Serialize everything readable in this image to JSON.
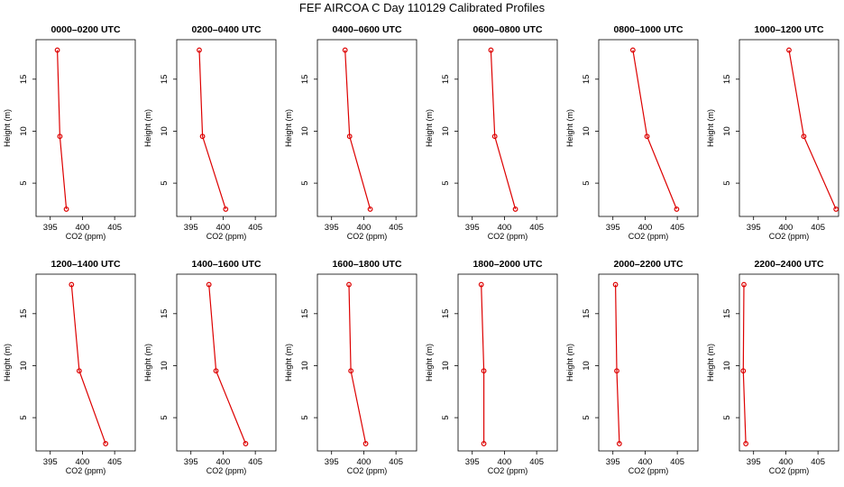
{
  "chart_data": {
    "title": "FEF AIRCOA C  Day 110129  Calibrated Profiles",
    "type": "line",
    "xlabel": "CO2 (ppm)",
    "ylabel": "Height (m)",
    "xlim": [
      392.8,
      408.2
    ],
    "ylim": [
      1.8,
      18.8
    ],
    "xticks": [
      395,
      400,
      405
    ],
    "yticks": [
      5,
      10,
      15
    ],
    "line_color": "#dd0000",
    "panels": [
      {
        "title": "0000–0200 UTC",
        "points": [
          {
            "x": 397.5,
            "y": 2.5
          },
          {
            "x": 396.5,
            "y": 9.5
          },
          {
            "x": 396.1,
            "y": 17.8
          }
        ]
      },
      {
        "title": "0200–0400 UTC",
        "points": [
          {
            "x": 400.4,
            "y": 2.5
          },
          {
            "x": 396.8,
            "y": 9.5
          },
          {
            "x": 396.3,
            "y": 17.8
          }
        ]
      },
      {
        "title": "0400–0600 UTC",
        "points": [
          {
            "x": 401.0,
            "y": 2.5
          },
          {
            "x": 397.8,
            "y": 9.5
          },
          {
            "x": 397.1,
            "y": 17.8
          }
        ]
      },
      {
        "title": "0600–0800 UTC",
        "points": [
          {
            "x": 401.7,
            "y": 2.5
          },
          {
            "x": 398.5,
            "y": 9.5
          },
          {
            "x": 397.9,
            "y": 17.8
          }
        ]
      },
      {
        "title": "0800–1000 UTC",
        "points": [
          {
            "x": 404.9,
            "y": 2.5
          },
          {
            "x": 400.3,
            "y": 9.5
          },
          {
            "x": 398.1,
            "y": 17.8
          }
        ]
      },
      {
        "title": "1000–1200 UTC",
        "points": [
          {
            "x": 407.8,
            "y": 2.5
          },
          {
            "x": 402.8,
            "y": 9.5
          },
          {
            "x": 400.5,
            "y": 17.8
          }
        ]
      },
      {
        "title": "1200–1400 UTC",
        "points": [
          {
            "x": 403.6,
            "y": 2.5
          },
          {
            "x": 399.5,
            "y": 9.5
          },
          {
            "x": 398.3,
            "y": 17.8
          }
        ]
      },
      {
        "title": "1400–1600 UTC",
        "points": [
          {
            "x": 403.5,
            "y": 2.5
          },
          {
            "x": 398.9,
            "y": 9.5
          },
          {
            "x": 397.8,
            "y": 17.8
          }
        ]
      },
      {
        "title": "1600–1800 UTC",
        "points": [
          {
            "x": 400.3,
            "y": 2.5
          },
          {
            "x": 398.0,
            "y": 9.5
          },
          {
            "x": 397.7,
            "y": 17.8
          }
        ]
      },
      {
        "title": "1800–2000 UTC",
        "points": [
          {
            "x": 396.8,
            "y": 2.5
          },
          {
            "x": 396.8,
            "y": 9.5
          },
          {
            "x": 396.4,
            "y": 17.8
          }
        ]
      },
      {
        "title": "2000–2200 UTC",
        "points": [
          {
            "x": 396.0,
            "y": 2.5
          },
          {
            "x": 395.6,
            "y": 9.5
          },
          {
            "x": 395.4,
            "y": 17.8
          }
        ]
      },
      {
        "title": "2200–2400 UTC",
        "points": [
          {
            "x": 393.8,
            "y": 2.5
          },
          {
            "x": 393.4,
            "y": 9.5
          },
          {
            "x": 393.5,
            "y": 17.8
          }
        ]
      }
    ]
  }
}
